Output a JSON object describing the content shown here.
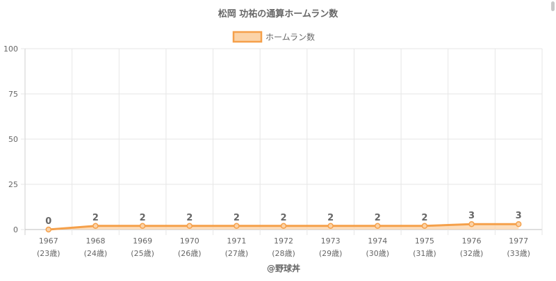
{
  "chart_data": {
    "type": "area",
    "title": "松岡 功祐の通算ホームラン数",
    "legend": {
      "position": "top",
      "label": "ホームラン数"
    },
    "categories": [
      "1967",
      "1968",
      "1969",
      "1970",
      "1971",
      "1972",
      "1973",
      "1974",
      "1975",
      "1976",
      "1977"
    ],
    "ages": [
      "(23歳)",
      "(24歳)",
      "(25歳)",
      "(26歳)",
      "(27歳)",
      "(28歳)",
      "(29歳)",
      "(30歳)",
      "(31歳)",
      "(32歳)",
      "(33歳)"
    ],
    "series": [
      {
        "name": "ホームラン数",
        "values": [
          0,
          2,
          2,
          2,
          2,
          2,
          2,
          2,
          2,
          3,
          3
        ]
      }
    ],
    "ylim": [
      0,
      100
    ],
    "yticks": [
      0,
      25,
      50,
      75,
      100
    ],
    "grid": true,
    "colors": {
      "line": "#f5a04a",
      "fill": "#fbd3a8",
      "grid": "#e6e6e6",
      "text": "#666666"
    }
  },
  "credit": "@野球丼"
}
